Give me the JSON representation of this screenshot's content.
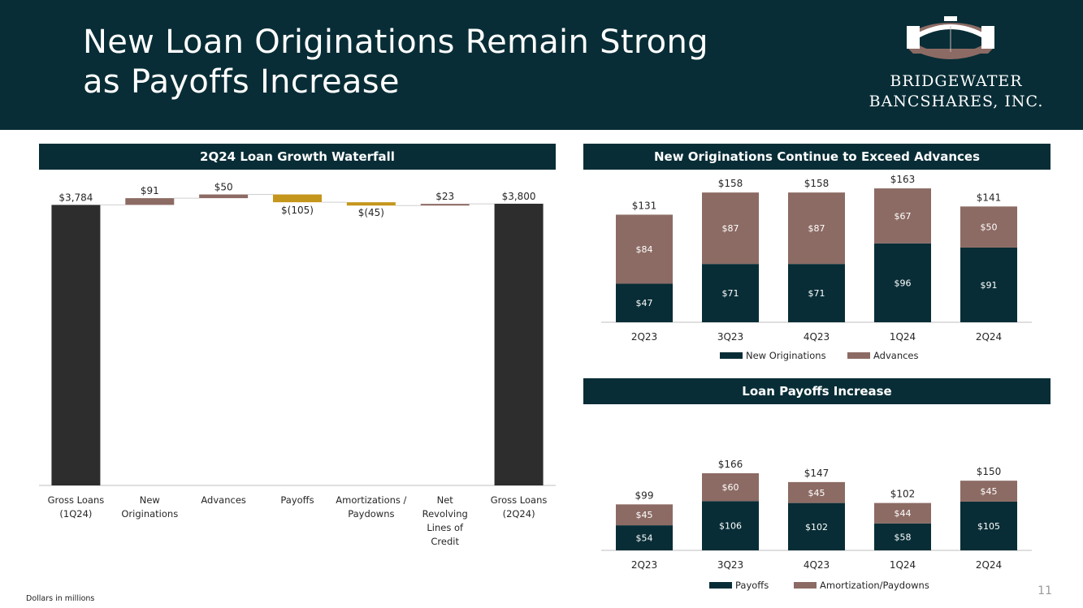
{
  "header": {
    "title_line1": "New Loan Originations Remain Strong",
    "title_line2": "as Payoffs Increase",
    "logo_line1": "BRIDGEWATER",
    "logo_line2": "BANCSHARES, INC."
  },
  "colors": {
    "navy": "#082d36",
    "taupe": "#8c6b64",
    "gold": "#c5961c",
    "charcoal": "#2d2d2d"
  },
  "waterfall": {
    "banner": "2Q24 Loan Growth Waterfall",
    "chart_data": {
      "type": "waterfall",
      "title": "2Q24 Loan Growth Waterfall",
      "categories": [
        "Gross Loans (1Q24)",
        "New Originations",
        "Advances",
        "Payoffs",
        "Amortizations / Paydowns",
        "Net Revolving Lines of Credit",
        "Gross Loans (2Q24)"
      ],
      "category_lines": [
        [
          "Gross Loans",
          "(1Q24)"
        ],
        [
          "New",
          "Originations"
        ],
        [
          "Advances"
        ],
        [
          "Payoffs"
        ],
        [
          "Amortizations /",
          "Paydowns"
        ],
        [
          "Net",
          "Revolving",
          "Lines of",
          "Credit"
        ],
        [
          "Gross Loans",
          "(2Q24)"
        ]
      ],
      "values": [
        3784,
        91,
        50,
        -105,
        -45,
        23,
        3800
      ],
      "kinds": [
        "total",
        "increase",
        "increase",
        "decrease",
        "decrease",
        "increase",
        "total"
      ],
      "labels": [
        "$3,784",
        "$91",
        "$50",
        "$(105)",
        "$(45)",
        "$23",
        "$3,800"
      ],
      "ylim": [
        0,
        3920
      ]
    }
  },
  "originations": {
    "banner": "New Originations Continue to Exceed Advances",
    "chart_data": {
      "type": "bar",
      "stacked": true,
      "categories": [
        "2Q23",
        "3Q23",
        "4Q23",
        "1Q24",
        "2Q24"
      ],
      "series": [
        {
          "name": "New Originations",
          "values": [
            47,
            71,
            71,
            96,
            91
          ],
          "labels": [
            "$47",
            "$71",
            "$71",
            "$96",
            "$91"
          ],
          "color": "#082d36"
        },
        {
          "name": "Advances",
          "values": [
            84,
            87,
            87,
            67,
            50
          ],
          "labels": [
            "$84",
            "$87",
            "$87",
            "$67",
            "$50"
          ],
          "color": "#8c6b64"
        }
      ],
      "totals": [
        "$131",
        "$158",
        "$158",
        "$163",
        "$141"
      ],
      "legend": "bottom",
      "ylim": [
        0,
        170
      ]
    }
  },
  "payoffs": {
    "banner": "Loan Payoffs Increase",
    "chart_data": {
      "type": "bar",
      "stacked": true,
      "categories": [
        "2Q23",
        "3Q23",
        "4Q23",
        "1Q24",
        "2Q24"
      ],
      "series": [
        {
          "name": "Payoffs",
          "values": [
            54,
            106,
            102,
            58,
            105
          ],
          "labels": [
            "$54",
            "$106",
            "$102",
            "$58",
            "$105"
          ],
          "color": "#082d36"
        },
        {
          "name": "Amortization/Paydowns",
          "values": [
            45,
            60,
            45,
            44,
            45
          ],
          "labels": [
            "$45",
            "$60",
            "$45",
            "$44",
            "$45"
          ],
          "color": "#8c6b64"
        }
      ],
      "totals": [
        "$99",
        "$166",
        "$147",
        "$102",
        "$150"
      ],
      "legend": "bottom",
      "ylim": [
        0,
        180
      ]
    }
  },
  "footer": {
    "footnote": "Dollars in millions",
    "page_number": "11"
  }
}
